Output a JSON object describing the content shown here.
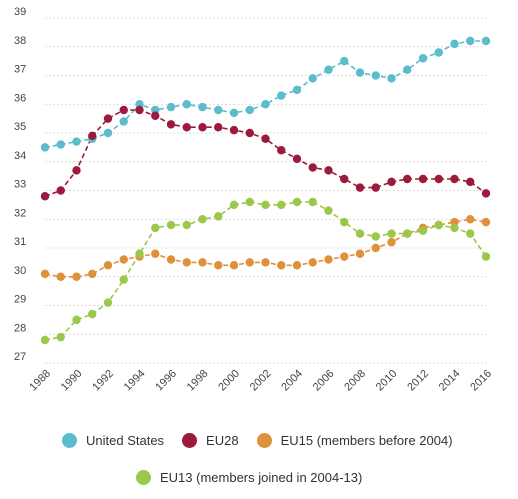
{
  "chart_data": {
    "type": "line",
    "title": "",
    "xlabel": "",
    "ylabel": "",
    "ylim": [
      27,
      39
    ],
    "yticks": [
      27,
      28,
      29,
      30,
      31,
      32,
      33,
      34,
      35,
      36,
      37,
      38,
      39
    ],
    "x": [
      1988,
      1989,
      1990,
      1991,
      1992,
      1993,
      1994,
      1995,
      1996,
      1997,
      1998,
      1999,
      2000,
      2001,
      2002,
      2003,
      2004,
      2005,
      2006,
      2007,
      2008,
      2009,
      2010,
      2011,
      2012,
      2013,
      2014,
      2015,
      2016
    ],
    "xticks": [
      "1988",
      "1990",
      "1992",
      "1994",
      "1996",
      "1998",
      "2000",
      "2002",
      "2004",
      "2006",
      "2008",
      "2010",
      "2012",
      "2014",
      "2016"
    ],
    "grid": true,
    "legend_position": "bottom",
    "series": [
      {
        "name": "United States",
        "color": "#5bbccc",
        "values": [
          34.5,
          34.6,
          34.7,
          34.8,
          35.0,
          35.4,
          36.0,
          35.8,
          35.9,
          36.0,
          35.9,
          35.8,
          35.7,
          35.8,
          36.0,
          36.3,
          36.5,
          36.9,
          37.2,
          37.5,
          37.1,
          37.0,
          36.9,
          37.2,
          37.6,
          37.8,
          38.1,
          38.2,
          38.2
        ]
      },
      {
        "name": "EU28",
        "color": "#9c1a3b",
        "values": [
          32.8,
          33.0,
          33.7,
          34.9,
          35.5,
          35.8,
          35.8,
          35.6,
          35.3,
          35.2,
          35.2,
          35.2,
          35.1,
          35.0,
          34.8,
          34.4,
          34.1,
          33.8,
          33.7,
          33.4,
          33.1,
          33.1,
          33.3,
          33.4,
          33.4,
          33.4,
          33.4,
          33.3,
          32.9
        ]
      },
      {
        "name": "EU15 (members before 2004)",
        "color": "#e0903a",
        "values": [
          30.1,
          30.0,
          30.0,
          30.1,
          30.4,
          30.6,
          30.7,
          30.8,
          30.6,
          30.5,
          30.5,
          30.4,
          30.4,
          30.5,
          30.5,
          30.4,
          30.4,
          30.5,
          30.6,
          30.7,
          30.8,
          31.0,
          31.2,
          31.5,
          31.7,
          31.8,
          31.9,
          32.0,
          31.9
        ]
      },
      {
        "name": "EU13 (members joined in 2004-13)",
        "color": "#9ac84a",
        "values": [
          27.8,
          27.9,
          28.5,
          28.7,
          29.1,
          29.9,
          30.8,
          31.7,
          31.8,
          31.8,
          32.0,
          32.1,
          32.5,
          32.6,
          32.5,
          32.5,
          32.6,
          32.6,
          32.3,
          31.9,
          31.5,
          31.4,
          31.5,
          31.5,
          31.6,
          31.8,
          31.7,
          31.5,
          30.7
        ]
      }
    ]
  }
}
